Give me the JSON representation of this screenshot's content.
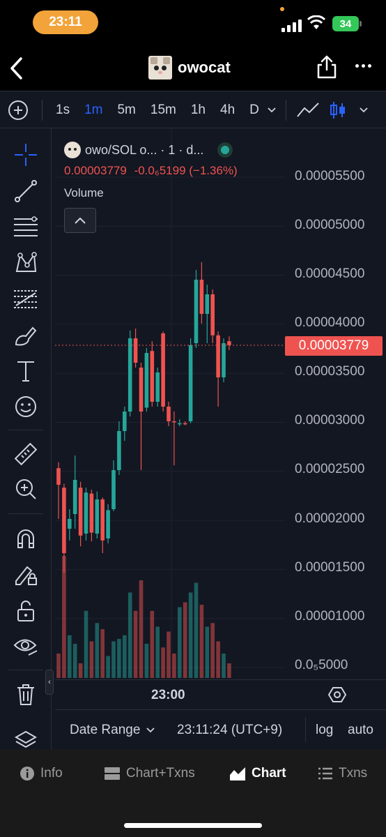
{
  "status_bar": {
    "time": "23:11",
    "battery": "34"
  },
  "header": {
    "title": "owocat"
  },
  "toolbar": {
    "intervals": [
      {
        "label": "1s",
        "active": false
      },
      {
        "label": "1m",
        "active": true
      },
      {
        "label": "5m",
        "active": false
      },
      {
        "label": "15m",
        "active": false
      },
      {
        "label": "1h",
        "active": false
      },
      {
        "label": "4h",
        "active": false
      },
      {
        "label": "D",
        "active": false
      }
    ]
  },
  "legend": {
    "symbol": "owo/SOL o... · 1 · d...",
    "last_price": "0.00003779",
    "change": "-0.0₆5199",
    "change_pct": "(−1.36%)",
    "volume_label": "Volume"
  },
  "price_axis": {
    "labels": [
      "0.00005500",
      "0.00005000",
      "0.00004500",
      "0.00004000",
      "0.00003500",
      "0.00003000",
      "0.00002500",
      "0.00002000",
      "0.00001500",
      "0.00001000",
      "0.0₅5000"
    ],
    "current_price_tag": "0.00003779"
  },
  "time_axis": {
    "label": "23:00"
  },
  "bottom_bar": {
    "date_range": "Date Range",
    "clock": "23:11:24 (UTC+9)",
    "log": "log",
    "auto": "auto"
  },
  "tabs": [
    {
      "label": "Info",
      "icon": "info-icon"
    },
    {
      "label": "Chart+Txns",
      "icon": "chart-txns-icon"
    },
    {
      "label": "Chart",
      "icon": "chart-icon",
      "active": true
    },
    {
      "label": "Txns",
      "icon": "list-icon"
    }
  ],
  "colors": {
    "up": "#26a69a",
    "down": "#ef5350",
    "accent": "#2962ff",
    "background": "#131722"
  },
  "chart_data": {
    "type": "candlestick",
    "price_range": [
      5e-06,
      5.5e-05
    ],
    "current_price": 3.779e-05,
    "candles": [
      {
        "o": 2.52e-05,
        "h": 2.58e-05,
        "l": 2e-05,
        "c": 2.35e-05
      },
      {
        "o": 2.32e-05,
        "h": 2.36e-05,
        "l": 1.45e-05,
        "c": 1.65e-05
      },
      {
        "o": 1.9e-05,
        "h": 2.1e-05,
        "l": 1.78e-05,
        "c": 2e-05
      },
      {
        "o": 2.05e-05,
        "h": 2.65e-05,
        "l": 1.9e-05,
        "c": 2.4e-05
      },
      {
        "o": 2.32e-05,
        "h": 2.38e-05,
        "l": 1.72e-05,
        "c": 1.83e-05
      },
      {
        "o": 1.85e-05,
        "h": 2.32e-05,
        "l": 1.78e-05,
        "c": 2.27e-05
      },
      {
        "o": 2.26e-05,
        "h": 2.3e-05,
        "l": 1.77e-05,
        "c": 1.86e-05
      },
      {
        "o": 1.85e-05,
        "h": 2.28e-05,
        "l": 1.8e-05,
        "c": 2.2e-05
      },
      {
        "o": 2.2e-05,
        "h": 2.22e-05,
        "l": 1.65e-05,
        "c": 1.78e-05
      },
      {
        "o": 1.8e-05,
        "h": 2.15e-05,
        "l": 1.75e-05,
        "c": 2.09e-05
      },
      {
        "o": 2.1e-05,
        "h": 2.6e-05,
        "l": 2.08e-05,
        "c": 2.5e-05
      },
      {
        "o": 2.5e-05,
        "h": 3e-05,
        "l": 2.45e-05,
        "c": 2.9e-05
      },
      {
        "o": 2.9e-05,
        "h": 3.15e-05,
        "l": 2.8e-05,
        "c": 3.1e-05
      },
      {
        "o": 3.1e-05,
        "h": 3.93e-05,
        "l": 3.05e-05,
        "c": 3.85e-05
      },
      {
        "o": 3.85e-05,
        "h": 3.95e-05,
        "l": 3.55e-05,
        "c": 3.6e-05
      },
      {
        "o": 3.55e-05,
        "h": 3.6e-05,
        "l": 2.5e-05,
        "c": 3.1e-05
      },
      {
        "o": 3.14e-05,
        "h": 3.75e-05,
        "l": 3.1e-05,
        "c": 3.7e-05
      },
      {
        "o": 3.72e-05,
        "h": 3.82e-05,
        "l": 3.15e-05,
        "c": 3.2e-05
      },
      {
        "o": 3.2e-05,
        "h": 3.55e-05,
        "l": 3.15e-05,
        "c": 3.5e-05
      },
      {
        "o": 3.9e-05,
        "h": 3.92e-05,
        "l": 3.1e-05,
        "c": 3.15e-05
      },
      {
        "o": 3.15e-05,
        "h": 3.2e-05,
        "l": 2.95e-05,
        "c": 3e-05
      },
      {
        "o": 3e-05,
        "h": 3.1e-05,
        "l": 2.55e-05,
        "c": 2.99e-05
      },
      {
        "o": 2.98e-05,
        "h": 3.02e-05,
        "l": 2.95e-05,
        "c": 2.98e-05
      },
      {
        "o": 2.98e-05,
        "h": 3e-05,
        "l": 2.96e-05,
        "c": 2.97e-05
      },
      {
        "o": 3e-05,
        "h": 3.85e-05,
        "l": 2.98e-05,
        "c": 3.78e-05
      },
      {
        "o": 3.8e-05,
        "h": 4.55e-05,
        "l": 3.75e-05,
        "c": 4.45e-05
      },
      {
        "o": 4.45e-05,
        "h": 4.63e-05,
        "l": 4e-05,
        "c": 4.1e-05
      },
      {
        "o": 4.1e-05,
        "h": 4.4e-05,
        "l": 3.8e-05,
        "c": 4.3e-05
      },
      {
        "o": 4.3e-05,
        "h": 4.35e-05,
        "l": 3.8e-05,
        "c": 3.88e-05
      },
      {
        "o": 3.88e-05,
        "h": 3.92e-05,
        "l": 3.15e-05,
        "c": 3.45e-05
      },
      {
        "o": 3.45e-05,
        "h": 3.85e-05,
        "l": 3.4e-05,
        "c": 3.8e-05
      },
      {
        "o": 3.82e-05,
        "h": 3.87e-05,
        "l": 3.73e-05,
        "c": 3.78e-05
      }
    ],
    "volumes": [
      0.2,
      1.0,
      0.35,
      0.28,
      0.12,
      0.55,
      0.3,
      0.45,
      0.4,
      0.18,
      0.3,
      0.32,
      0.35,
      0.7,
      0.55,
      0.8,
      0.28,
      0.55,
      0.42,
      0.25,
      0.38,
      0.2,
      0.58,
      0.62,
      0.7,
      0.78,
      0.6,
      0.42,
      0.45,
      0.3,
      0.2,
      0.12
    ]
  }
}
